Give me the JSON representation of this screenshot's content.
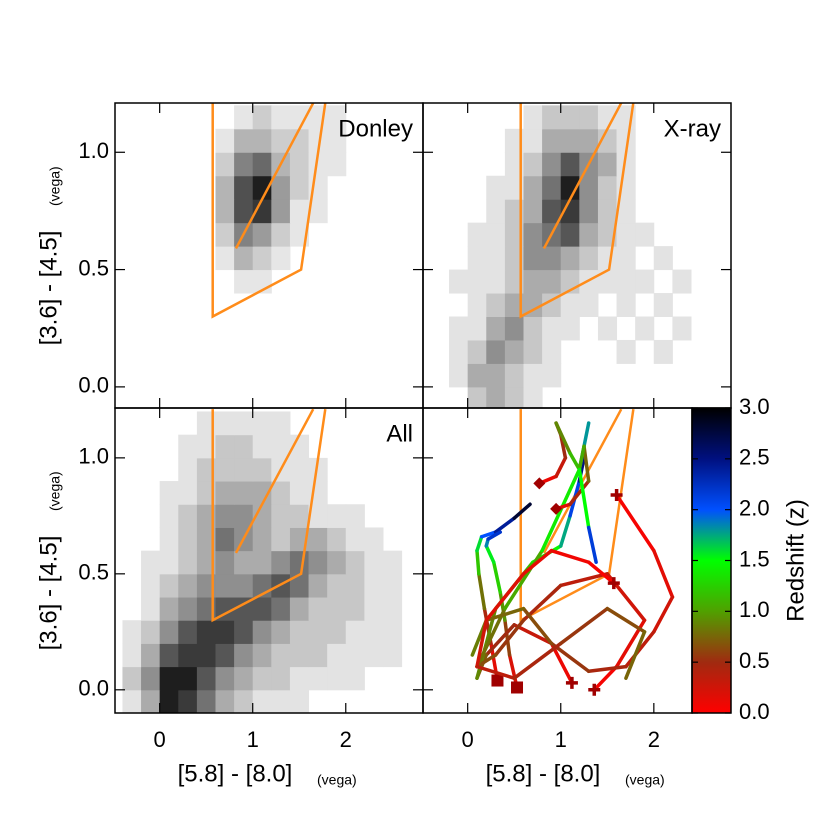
{
  "wedge": {
    "color": "#ff8c1a",
    "lines": [
      {
        "x": [
          0.57,
          0.57,
          1.52,
          1.78
        ],
        "y": [
          1.21,
          0.3,
          0.5,
          1.21
        ]
      },
      {
        "x": [
          0.82,
          1.65
        ],
        "y": [
          0.59,
          1.21
        ]
      }
    ]
  },
  "chart_data": [
    {
      "type": "heatmap",
      "label": "Donley",
      "xlim": [
        -0.48,
        2.83
      ],
      "ylim": [
        -0.09,
        1.21
      ],
      "xticks": [
        0,
        1,
        2
      ],
      "yticks": [
        {
          "value": 0,
          "label": "0.0"
        },
        {
          "value": 0.5,
          "label": "0.5"
        },
        {
          "value": 1,
          "label": "1.0"
        }
      ],
      "ylabel": "[3.6] - [4.5]",
      "ylabel_sub": "(vega)",
      "x_edges": [
        -0.4,
        -0.2,
        0,
        0.2,
        0.4,
        0.6,
        0.8,
        1.0,
        1.2,
        1.4,
        1.6,
        1.8,
        2.0,
        2.2,
        2.4,
        2.6,
        2.8
      ],
      "y_edges": [
        -0.1,
        0,
        0.1,
        0.2,
        0.3,
        0.4,
        0.5,
        0.6,
        0.7,
        0.8,
        0.9,
        1.0,
        1.1,
        1.2
      ],
      "counts": [
        [
          0,
          0,
          0,
          0,
          0,
          0,
          0,
          0,
          0,
          0,
          0,
          0,
          0,
          0,
          0,
          0
        ],
        [
          0,
          0,
          0,
          0,
          0,
          0,
          0,
          0,
          0,
          0,
          0,
          0,
          0,
          0,
          0,
          0
        ],
        [
          0,
          0,
          0,
          0,
          0,
          0,
          0,
          0,
          0,
          0,
          0,
          0,
          0,
          0,
          0,
          0
        ],
        [
          0,
          0,
          0,
          0,
          0,
          0,
          0,
          0,
          0,
          0,
          0,
          0,
          0,
          0,
          0,
          0
        ],
        [
          0,
          0,
          0,
          0,
          0,
          0,
          0,
          0,
          0,
          0,
          0,
          0,
          0,
          0,
          0,
          0
        ],
        [
          0,
          0,
          0,
          0,
          0,
          0,
          1,
          1,
          0,
          0,
          0,
          0,
          0,
          0,
          0,
          0
        ],
        [
          0,
          0,
          0,
          0,
          0,
          1,
          3,
          2,
          1,
          0,
          0,
          0,
          0,
          0,
          0,
          0
        ],
        [
          0,
          0,
          0,
          0,
          0,
          2,
          5,
          4,
          2,
          1,
          0,
          0,
          0,
          0,
          0,
          0
        ],
        [
          0,
          0,
          0,
          0,
          0,
          3,
          7,
          8,
          4,
          1,
          1,
          0,
          0,
          0,
          0,
          0
        ],
        [
          0,
          0,
          0,
          0,
          0,
          3,
          7,
          9,
          4,
          2,
          1,
          0,
          0,
          0,
          0,
          0
        ],
        [
          0,
          0,
          0,
          0,
          0,
          2,
          5,
          6,
          3,
          2,
          1,
          1,
          0,
          0,
          0,
          0
        ],
        [
          0,
          0,
          0,
          0,
          0,
          1,
          3,
          3,
          2,
          2,
          1,
          1,
          0,
          0,
          0,
          0
        ],
        [
          0,
          0,
          0,
          0,
          0,
          0,
          1,
          2,
          1,
          1,
          1,
          1,
          0,
          0,
          0,
          0
        ]
      ]
    },
    {
      "type": "heatmap",
      "label": "X-ray",
      "xlim": [
        -0.48,
        2.83
      ],
      "ylim": [
        -0.09,
        1.21
      ],
      "xticks": [
        0,
        1,
        2
      ],
      "yticks": [
        {
          "value": 0,
          "label": "0.0"
        },
        {
          "value": 0.5,
          "label": "0.5"
        },
        {
          "value": 1,
          "label": "1.0"
        }
      ],
      "x_edges": [
        -0.4,
        -0.2,
        0,
        0.2,
        0.4,
        0.6,
        0.8,
        1.0,
        1.2,
        1.4,
        1.6,
        1.8,
        2.0,
        2.2,
        2.4,
        2.6,
        2.8
      ],
      "y_edges": [
        -0.1,
        0,
        0.1,
        0.2,
        0.3,
        0.4,
        0.5,
        0.6,
        0.7,
        0.8,
        0.9,
        1.0,
        1.1,
        1.2
      ],
      "counts": [
        [
          0,
          0,
          2,
          3,
          2,
          1,
          0,
          0,
          0,
          0,
          0,
          0,
          0,
          0,
          0,
          0
        ],
        [
          0,
          1,
          3,
          3,
          2,
          1,
          1,
          0,
          0,
          0,
          0,
          0,
          0,
          0,
          0,
          0
        ],
        [
          0,
          1,
          2,
          4,
          3,
          2,
          1,
          0,
          0,
          0,
          1,
          0,
          1,
          0,
          0,
          0
        ],
        [
          0,
          1,
          1,
          3,
          4,
          2,
          1,
          1,
          0,
          1,
          0,
          1,
          0,
          1,
          0,
          0
        ],
        [
          0,
          0,
          1,
          2,
          3,
          3,
          2,
          1,
          1,
          0,
          1,
          0,
          1,
          0,
          0,
          0
        ],
        [
          0,
          1,
          1,
          1,
          2,
          3,
          3,
          2,
          1,
          1,
          1,
          1,
          0,
          1,
          0,
          0
        ],
        [
          0,
          0,
          1,
          1,
          2,
          4,
          4,
          3,
          2,
          1,
          1,
          0,
          1,
          0,
          0,
          0
        ],
        [
          0,
          0,
          1,
          1,
          2,
          4,
          5,
          6,
          3,
          2,
          1,
          1,
          0,
          0,
          0,
          0
        ],
        [
          0,
          0,
          0,
          1,
          2,
          3,
          6,
          7,
          4,
          2,
          1,
          0,
          0,
          0,
          0,
          0
        ],
        [
          0,
          0,
          0,
          1,
          1,
          3,
          5,
          8,
          4,
          2,
          1,
          0,
          0,
          0,
          0,
          0
        ],
        [
          0,
          0,
          0,
          0,
          1,
          2,
          4,
          6,
          4,
          3,
          1,
          0,
          0,
          0,
          0,
          0
        ],
        [
          0,
          0,
          0,
          0,
          1,
          1,
          3,
          3,
          3,
          2,
          1,
          0,
          0,
          0,
          0,
          0
        ],
        [
          0,
          0,
          0,
          0,
          0,
          1,
          2,
          2,
          2,
          1,
          1,
          0,
          0,
          0,
          0,
          0
        ]
      ]
    },
    {
      "type": "heatmap",
      "label": "All",
      "xlim": [
        -0.48,
        2.83
      ],
      "ylim": [
        -0.1,
        1.215
      ],
      "xticks": [
        0,
        1,
        2
      ],
      "yticks": [
        {
          "value": 0,
          "label": "0.0"
        },
        {
          "value": 0.5,
          "label": "0.5"
        },
        {
          "value": 1,
          "label": "1.0"
        }
      ],
      "xlabel": "[5.8] - [8.0]",
      "xlabel_sub": "(vega)",
      "ylabel": "[3.6] - [4.5]",
      "ylabel_sub": "(vega)",
      "x_edges": [
        -0.4,
        -0.2,
        0,
        0.2,
        0.4,
        0.6,
        0.8,
        1.0,
        1.2,
        1.4,
        1.6,
        1.8,
        2.0,
        2.2,
        2.4,
        2.6,
        2.8
      ],
      "y_edges": [
        -0.1,
        0,
        0.1,
        0.2,
        0.3,
        0.4,
        0.5,
        0.6,
        0.7,
        0.8,
        0.9,
        1.0,
        1.1,
        1.2
      ],
      "counts": [
        [
          1,
          3,
          8,
          7,
          5,
          3,
          2,
          1,
          1,
          1,
          0,
          0,
          0,
          0,
          0,
          0
        ],
        [
          2,
          4,
          8,
          8,
          6,
          4,
          3,
          2,
          2,
          1,
          1,
          1,
          1,
          0,
          0,
          0
        ],
        [
          1,
          3,
          6,
          7,
          7,
          6,
          4,
          3,
          2,
          2,
          2,
          1,
          1,
          1,
          1,
          0
        ],
        [
          1,
          2,
          4,
          6,
          7,
          7,
          6,
          4,
          3,
          2,
          2,
          2,
          1,
          1,
          1,
          0
        ],
        [
          0,
          1,
          3,
          4,
          5,
          6,
          6,
          6,
          5,
          3,
          2,
          2,
          2,
          1,
          1,
          0
        ],
        [
          0,
          1,
          2,
          3,
          4,
          4,
          4,
          5,
          6,
          5,
          3,
          2,
          2,
          1,
          1,
          0
        ],
        [
          0,
          1,
          1,
          2,
          3,
          4,
          3,
          3,
          4,
          5,
          4,
          3,
          2,
          1,
          1,
          0
        ],
        [
          0,
          0,
          1,
          2,
          3,
          5,
          4,
          3,
          2,
          3,
          3,
          2,
          1,
          1,
          0,
          0
        ],
        [
          0,
          0,
          1,
          2,
          3,
          4,
          4,
          3,
          2,
          2,
          1,
          1,
          1,
          0,
          0,
          0
        ],
        [
          0,
          0,
          1,
          1,
          2,
          3,
          3,
          3,
          2,
          1,
          1,
          0,
          0,
          0,
          0,
          0
        ],
        [
          0,
          0,
          0,
          1,
          2,
          2,
          2,
          2,
          1,
          1,
          1,
          0,
          0,
          0,
          0,
          0
        ],
        [
          0,
          0,
          0,
          1,
          1,
          2,
          2,
          1,
          1,
          1,
          0,
          0,
          0,
          0,
          0,
          0
        ],
        [
          0,
          0,
          0,
          0,
          1,
          1,
          1,
          1,
          1,
          0,
          0,
          0,
          0,
          0,
          0,
          0
        ]
      ]
    },
    {
      "type": "tracks",
      "xlim": [
        -0.48,
        2.41
      ],
      "ylim": [
        -0.1,
        1.215
      ],
      "xticks": [
        0,
        1,
        2
      ],
      "yticks": [
        {
          "value": 0,
          "label": "0.0"
        },
        {
          "value": 0.5,
          "label": "0.5"
        },
        {
          "value": 1,
          "label": "1.0"
        }
      ],
      "xlabel": "[5.8] - [8.0]",
      "xlabel_sub": "(vega)",
      "marker_color": "#a00000",
      "colorbar": {
        "label": "Redshift (z)",
        "lim": [
          0,
          3
        ],
        "ticks": [
          {
            "value": 0,
            "label": "0.0"
          },
          {
            "value": 0.5,
            "label": "0.5"
          },
          {
            "value": 1,
            "label": "1.0"
          },
          {
            "value": 1.5,
            "label": "1.5"
          },
          {
            "value": 2,
            "label": "2.0"
          },
          {
            "value": 2.5,
            "label": "2.5"
          },
          {
            "value": 3,
            "label": "3.0"
          }
        ],
        "colors": [
          "#ff0000",
          "#a02a10",
          "#50a000",
          "#00ff00",
          "#0050ff",
          "#001080",
          "#000000"
        ]
      },
      "tracks": [
        {
          "marker": "square",
          "x": [
            0.32,
            0.25,
            0.18,
            0.12,
            0.1,
            0.15,
            0.3,
            0.5,
            0.67
          ],
          "y": [
            0.04,
            0.2,
            0.35,
            0.5,
            0.6,
            0.66,
            0.68,
            0.74,
            0.8
          ],
          "z": [
            0,
            0.3,
            0.6,
            1.0,
            1.4,
            1.8,
            2.2,
            2.6,
            3.0
          ]
        },
        {
          "marker": "square",
          "x": [
            0.53,
            0.45,
            0.4,
            0.35,
            0.28,
            0.2,
            0.22,
            0.35
          ],
          "y": [
            0.01,
            0.15,
            0.3,
            0.42,
            0.55,
            0.62,
            0.65,
            0.68
          ],
          "z": [
            0,
            0.4,
            0.8,
            1.1,
            1.4,
            1.7,
            2.0,
            2.4
          ]
        },
        {
          "marker": "cross",
          "x": [
            1.12,
            0.9,
            0.5,
            0.2,
            0.1,
            0.3,
            0.7,
            1.0,
            1.1,
            1.2,
            1.25
          ],
          "y": [
            0.03,
            0.2,
            0.28,
            0.15,
            0.05,
            0.35,
            0.55,
            0.62,
            0.75,
            0.9,
            1.0
          ],
          "z": [
            0,
            0.2,
            0.4,
            0.6,
            0.8,
            1.0,
            1.3,
            1.6,
            1.9,
            2.3,
            2.7
          ]
        },
        {
          "marker": "cross",
          "x": [
            1.36,
            1.6,
            1.9,
            1.5,
            1.0,
            0.6,
            0.3,
            0.1,
            0.4,
            0.8,
            1.2,
            1.3
          ],
          "y": [
            0.0,
            0.1,
            0.3,
            0.5,
            0.45,
            0.3,
            0.15,
            0.1,
            0.35,
            0.6,
            0.95,
            1.15
          ],
          "z": [
            0,
            0.1,
            0.2,
            0.3,
            0.4,
            0.5,
            0.6,
            0.7,
            0.9,
            1.2,
            1.6,
            2.0
          ]
        },
        {
          "marker": "cross",
          "x": [
            1.6,
            2.0,
            2.2,
            2.0,
            1.7,
            1.3,
            0.9,
            0.6,
            0.2,
            0.05
          ],
          "y": [
            0.84,
            0.6,
            0.4,
            0.25,
            0.1,
            0.08,
            0.2,
            0.35,
            0.3,
            0.15
          ],
          "z": [
            0,
            0.1,
            0.2,
            0.3,
            0.4,
            0.5,
            0.6,
            0.7,
            0.8,
            0.9
          ]
        },
        {
          "marker": "cross",
          "x": [
            1.57,
            1.3,
            0.9,
            0.6,
            0.2,
            0.1,
            0.5,
            1.0,
            1.5,
            1.9,
            1.7
          ],
          "y": [
            0.46,
            0.55,
            0.6,
            0.5,
            0.3,
            0.1,
            0.05,
            0.2,
            0.35,
            0.25,
            0.05
          ],
          "z": [
            0,
            0.05,
            0.1,
            0.15,
            0.2,
            0.3,
            0.4,
            0.5,
            0.6,
            0.7,
            0.8
          ]
        },
        {
          "marker": "diamond",
          "x": [
            0.77,
            0.95,
            1.05,
            1.0,
            0.95,
            1.1,
            1.2
          ],
          "y": [
            0.89,
            0.92,
            1.0,
            1.1,
            1.15,
            1.02,
            0.95
          ],
          "z": [
            0,
            0.2,
            0.4,
            0.6,
            0.8,
            1.0,
            1.3
          ]
        },
        {
          "marker": "diamond",
          "x": [
            0.95,
            1.1,
            1.3,
            1.25,
            1.2,
            1.3,
            1.38
          ],
          "y": [
            0.78,
            0.8,
            0.9,
            1.05,
            0.95,
            0.7,
            0.55
          ],
          "z": [
            0,
            0.3,
            0.6,
            0.9,
            1.2,
            1.8,
            2.5
          ]
        }
      ]
    }
  ]
}
